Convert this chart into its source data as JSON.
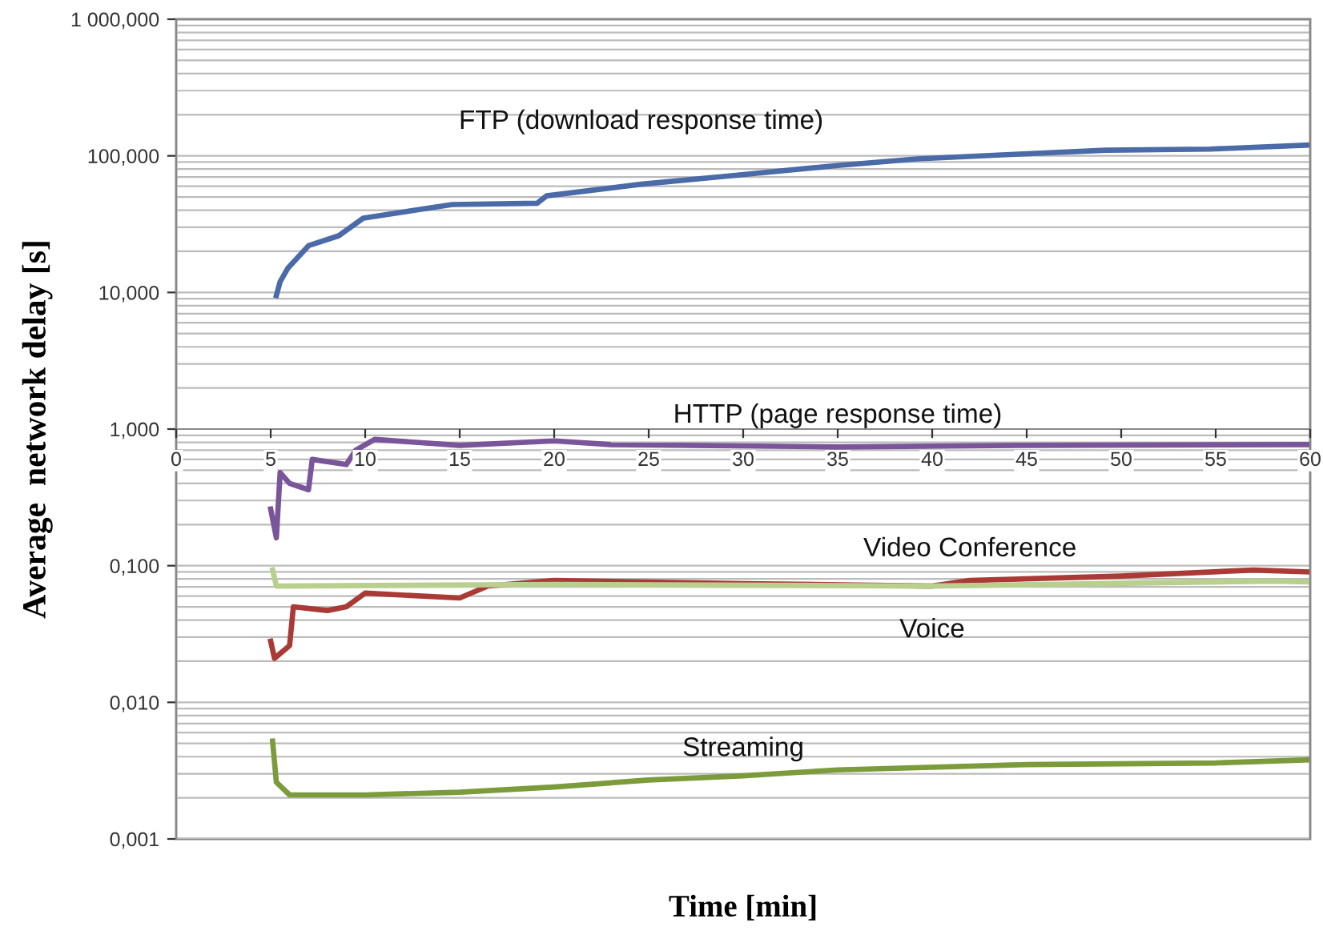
{
  "chart_data": {
    "type": "line",
    "xlabel": "Time [min]",
    "ylabel": "Average  network delay [s]",
    "log": "y",
    "grid": "y",
    "legend": false,
    "marker": "none",
    "line_style": "solid",
    "xlim": [
      0,
      60
    ],
    "xticks": [
      0,
      5,
      10,
      15,
      20,
      25,
      30,
      35,
      40,
      45,
      50,
      55,
      60
    ],
    "ylim": [
      0.001,
      1000
    ],
    "yticks": [
      {
        "value": 0.001,
        "label": "0,001"
      },
      {
        "value": 0.01,
        "label": "0,010"
      },
      {
        "value": 0.1,
        "label": "0,100"
      },
      {
        "value": 1,
        "label": "1,000"
      },
      {
        "value": 10,
        "label": "10,000"
      },
      {
        "value": 100,
        "label": "100,000"
      },
      {
        "value": 1000,
        "label": "1 000,000"
      }
    ],
    "series": [
      {
        "name": "FTP (download response time)",
        "color": "#4a6aa8",
        "x": [
          5.3,
          5.5,
          5.9,
          7,
          8.6,
          9.9,
          14.6,
          19.1,
          19.6,
          24.6,
          29.6,
          35,
          39.2,
          44.6,
          49.2,
          54.7,
          60
        ],
        "values": [
          9.5,
          12,
          15,
          22,
          26,
          35,
          44,
          45,
          51,
          62,
          72,
          85,
          95,
          103,
          110,
          112,
          120
        ]
      },
      {
        "name": "HTTP (page response time)",
        "color": "#7a559a",
        "x": [
          5.0,
          5.3,
          5.5,
          6,
          7,
          7.2,
          9,
          9.5,
          10.5,
          15,
          20,
          23,
          35,
          45,
          60
        ],
        "values": [
          0.26,
          0.16,
          0.48,
          0.4,
          0.36,
          0.6,
          0.55,
          0.7,
          0.84,
          0.76,
          0.82,
          0.77,
          0.74,
          0.76,
          0.77
        ]
      },
      {
        "name": "Video Conference",
        "color": "#aa3a36",
        "x": [
          5.0,
          5.2,
          6,
          6.2,
          8,
          9,
          10,
          15,
          16.5,
          20,
          30,
          40,
          42,
          50,
          57,
          60
        ],
        "values": [
          0.028,
          0.021,
          0.026,
          0.05,
          0.047,
          0.05,
          0.063,
          0.058,
          0.071,
          0.078,
          0.074,
          0.071,
          0.078,
          0.084,
          0.093,
          0.09
        ]
      },
      {
        "name": "Voice",
        "color": "#b8cf8e",
        "x": [
          5.1,
          5.3,
          20,
          40,
          58,
          60
        ],
        "values": [
          0.093,
          0.071,
          0.073,
          0.071,
          0.077,
          0.076
        ]
      },
      {
        "name": "Streaming",
        "color": "#7c9c3c",
        "x": [
          5.1,
          5.3,
          6,
          10,
          15,
          20,
          25,
          30,
          35,
          45,
          55,
          60
        ],
        "values": [
          0.0052,
          0.0026,
          0.0021,
          0.0021,
          0.0022,
          0.0024,
          0.0027,
          0.0029,
          0.0032,
          0.0035,
          0.0036,
          0.0038
        ]
      }
    ]
  }
}
